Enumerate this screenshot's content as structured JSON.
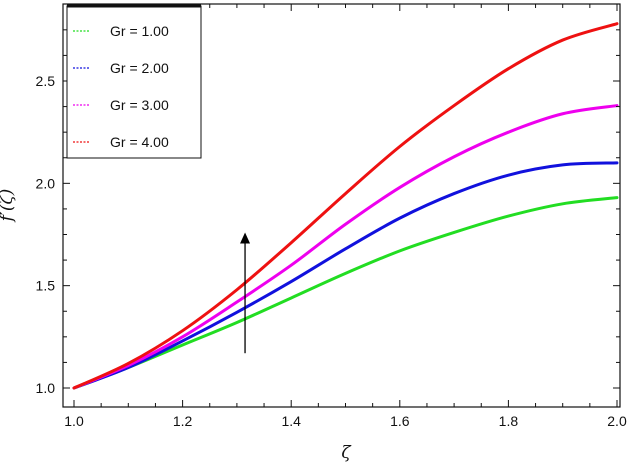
{
  "chart_data": {
    "type": "line",
    "xlabel": "ζ",
    "ylabel": "f′(ζ)",
    "xlim": [
      1.0,
      2.0
    ],
    "ylim": [
      0.93,
      2.8
    ],
    "xticks": [
      1.0,
      1.2,
      1.4,
      1.6,
      1.8,
      2.0
    ],
    "yticks": [
      1.0,
      1.5,
      2.0,
      2.5
    ],
    "xtick_labels": [
      "1.0",
      "1.2",
      "1.4",
      "1.6",
      "1.8",
      "2.0"
    ],
    "ytick_labels": [
      "1.0",
      "1.5",
      "2.0",
      "2.5"
    ],
    "grid": false,
    "legend_position": "top-left",
    "x": [
      1.0,
      1.1,
      1.2,
      1.3,
      1.4,
      1.5,
      1.6,
      1.7,
      1.8,
      1.9,
      2.0
    ],
    "series": [
      {
        "name": "Gr = 1.00",
        "color": "#22dd22",
        "values": [
          1.0,
          1.1,
          1.21,
          1.32,
          1.44,
          1.56,
          1.67,
          1.76,
          1.84,
          1.9,
          1.93
        ]
      },
      {
        "name": "Gr = 2.00",
        "color": "#1111dd",
        "values": [
          1.0,
          1.1,
          1.23,
          1.37,
          1.52,
          1.68,
          1.83,
          1.95,
          2.04,
          2.09,
          2.1
        ]
      },
      {
        "name": "Gr = 3.00",
        "color": "#ee00ee",
        "values": [
          1.0,
          1.11,
          1.25,
          1.42,
          1.6,
          1.8,
          1.98,
          2.13,
          2.25,
          2.34,
          2.38
        ]
      },
      {
        "name": "Gr = 4.00",
        "color": "#ee1111",
        "values": [
          1.0,
          1.12,
          1.28,
          1.48,
          1.71,
          1.95,
          2.18,
          2.38,
          2.56,
          2.7,
          2.78
        ]
      }
    ],
    "annotation": {
      "type": "arrow",
      "x": 1.315,
      "y_start": 1.17,
      "y_end": 1.76,
      "color": "#000000"
    }
  }
}
